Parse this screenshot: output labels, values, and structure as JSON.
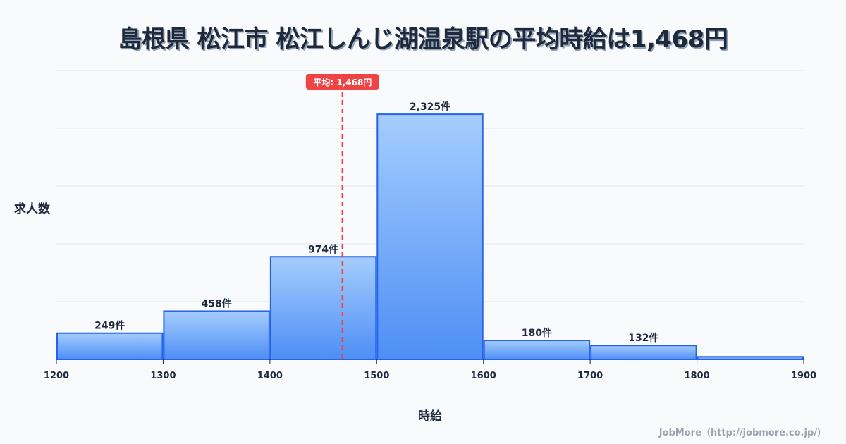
{
  "header": {
    "title": "島根県 松江市 松江しんじ湖温泉駅の平均時給は1,468円"
  },
  "axes": {
    "ylabel": "求人数",
    "xlabel": "時給"
  },
  "footer": {
    "credit": "JobMore（http://jobmore.co.jp/）"
  },
  "colors": {
    "bar_top": "#a5cdfd",
    "bar_bottom": "#4e8ef5",
    "bar_stroke": "#2563eb",
    "mean_line": "#ef4444",
    "grid": "#e2e8f0",
    "text": "#1e293b"
  },
  "chart_data": {
    "type": "bar",
    "subtype": "histogram",
    "title": "島根県 松江市 松江しんじ湖温泉駅の平均時給は1,468円",
    "xlabel": "時給",
    "ylabel": "求人数",
    "bins": [
      {
        "from": 1200,
        "to": 1300,
        "value": 249,
        "label": "249件"
      },
      {
        "from": 1300,
        "to": 1400,
        "value": 458,
        "label": "458件"
      },
      {
        "from": 1400,
        "to": 1500,
        "value": 974,
        "label": "974件"
      },
      {
        "from": 1500,
        "to": 1600,
        "value": 2325,
        "label": "2,325件"
      },
      {
        "from": 1600,
        "to": 1700,
        "value": 180,
        "label": "180件"
      },
      {
        "from": 1700,
        "to": 1800,
        "value": 132,
        "label": "132件"
      },
      {
        "from": 1800,
        "to": 1900,
        "value": 25,
        "label": ""
      }
    ],
    "categories": [
      "1200-1300",
      "1300-1400",
      "1400-1500",
      "1500-1600",
      "1600-1700",
      "1700-1800",
      "1800-1900"
    ],
    "values": [
      249,
      458,
      974,
      2325,
      180,
      132,
      25
    ],
    "x_ticks": [
      1200,
      1300,
      1400,
      1500,
      1600,
      1700,
      1800,
      1900
    ],
    "xlim": [
      1200,
      1900
    ],
    "ylim": [
      0,
      2740
    ],
    "grid": true,
    "gridlines": 5,
    "annotations": [
      {
        "type": "vline",
        "x": 1468,
        "label": "平均: 1,468円",
        "style": "dashed",
        "color": "#ef4444"
      }
    ],
    "legend": null
  }
}
